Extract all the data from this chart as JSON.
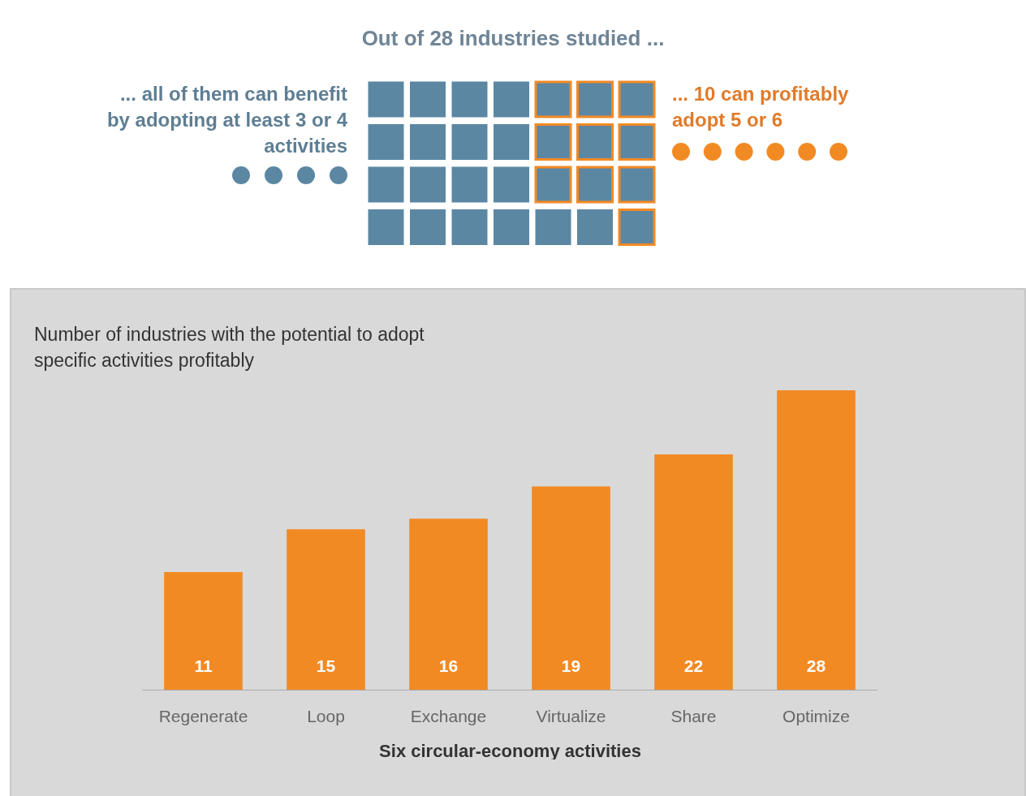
{
  "chart_data": [
    {
      "type": "other",
      "title": "Out of 28 industries studied ...",
      "annotations": [
        "... all of them can benefit by adopting at least 3 or 4 activities",
        "... 10 can profitably adopt 5 or 6"
      ]
    },
    {
      "type": "bar",
      "title": "Number of industries with the potential to adopt specific activities profitably",
      "xlabel": "Six circular-economy activities",
      "categories": [
        "Regenerate",
        "Loop",
        "Exchange",
        "Virtualize",
        "Share",
        "Optimize"
      ],
      "values": [
        11,
        15,
        16,
        19,
        22,
        28
      ],
      "color": "#f28a24",
      "data_labels": true
    }
  ]
}
